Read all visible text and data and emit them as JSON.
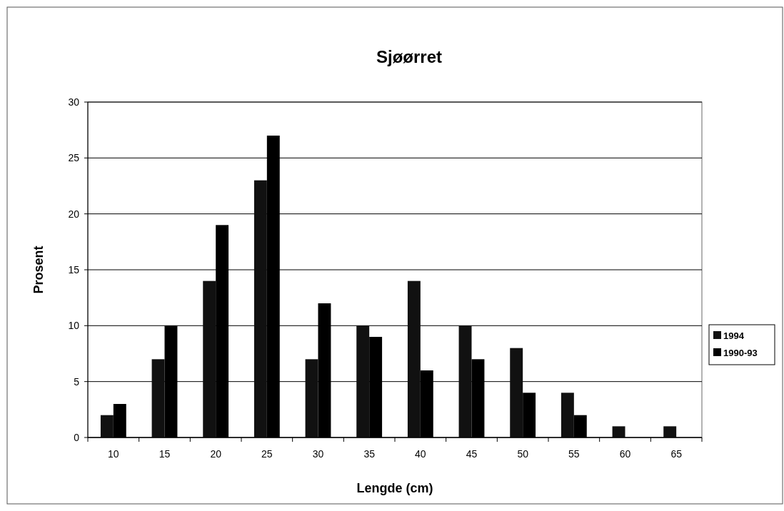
{
  "chart_data": {
    "type": "bar",
    "title": "Sjøørret",
    "xlabel": "Lengde (cm)",
    "ylabel": "Prosent",
    "categories": [
      "10",
      "15",
      "20",
      "25",
      "30",
      "35",
      "40",
      "45",
      "50",
      "55",
      "60",
      "65"
    ],
    "series": [
      {
        "name": "1994",
        "color": "#111111",
        "values": [
          2,
          7,
          14,
          23,
          7,
          10,
          14,
          10,
          8,
          4,
          1,
          1
        ]
      },
      {
        "name": "1990-93",
        "color": "#000000",
        "values": [
          3,
          10,
          19,
          27,
          12,
          9,
          6,
          7,
          4,
          2,
          0,
          0
        ]
      }
    ],
    "ylim": [
      0,
      30
    ],
    "yticks": [
      0,
      5,
      10,
      15,
      20,
      25,
      30
    ],
    "grid": "y",
    "legend": "right"
  }
}
